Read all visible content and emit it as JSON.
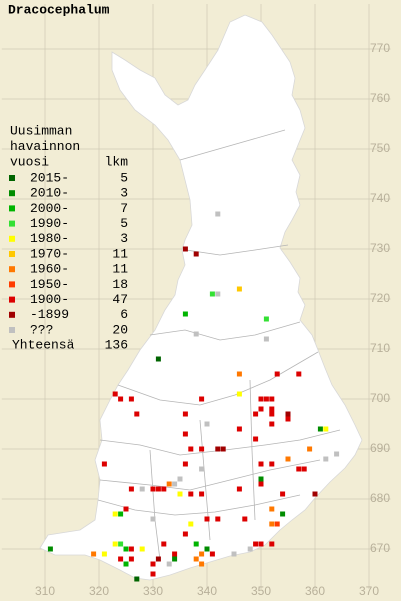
{
  "title": "Dracocephalum",
  "legend": {
    "header": [
      "Uusimman",
      "havainnon",
      "vuosi"
    ],
    "count_header": "lkm",
    "rows": [
      {
        "label": "2015-",
        "count": 5,
        "color": "#006400"
      },
      {
        "label": "2010-",
        "count": 3,
        "color": "#008c00"
      },
      {
        "label": "2000-",
        "count": 7,
        "color": "#00b400"
      },
      {
        "label": "1990-",
        "count": 5,
        "color": "#33e033"
      },
      {
        "label": "1980-",
        "count": 3,
        "color": "#ffff00"
      },
      {
        "label": "1970-",
        "count": 11,
        "color": "#ffc800"
      },
      {
        "label": "1960-",
        "count": 11,
        "color": "#ff7800"
      },
      {
        "label": "1950-",
        "count": 18,
        "color": "#ff3c00"
      },
      {
        "label": "1900-",
        "count": 47,
        "color": "#dc0000"
      },
      {
        "label": "-1899",
        "count": 6,
        "color": "#a00000"
      },
      {
        "label": "???",
        "count": 20,
        "color": "#c0c0c0"
      }
    ],
    "total_label": "Yhteensä",
    "total": 136
  },
  "xlim": [
    302,
    374
  ],
  "ylim": [
    662,
    779
  ],
  "xticks": [
    310,
    320,
    330,
    340,
    350,
    360,
    370
  ],
  "yticks": [
    670,
    680,
    690,
    700,
    710,
    720,
    730,
    740,
    750,
    760,
    770
  ],
  "observations": [
    [
      342,
      737,
      10
    ],
    [
      336,
      730,
      9
    ],
    [
      338,
      729,
      9
    ],
    [
      346,
      722,
      5
    ],
    [
      341,
      721,
      3
    ],
    [
      342,
      721,
      10
    ],
    [
      336,
      717,
      2
    ],
    [
      351,
      716,
      3
    ],
    [
      338,
      713,
      10
    ],
    [
      351,
      712,
      10
    ],
    [
      331,
      708,
      0
    ],
    [
      346,
      705,
      6
    ],
    [
      353,
      705,
      8
    ],
    [
      357,
      705,
      8
    ],
    [
      346,
      701,
      4
    ],
    [
      323,
      701,
      8
    ],
    [
      324,
      700,
      8
    ],
    [
      326,
      700,
      8
    ],
    [
      339,
      700,
      8
    ],
    [
      350,
      700,
      8
    ],
    [
      351,
      700,
      8
    ],
    [
      352,
      700,
      8
    ],
    [
      350,
      698,
      8
    ],
    [
      352,
      698,
      8
    ],
    [
      355,
      697,
      9
    ],
    [
      355,
      696,
      8
    ],
    [
      327,
      697,
      8
    ],
    [
      336,
      697,
      8
    ],
    [
      349,
      697,
      8
    ],
    [
      352,
      697,
      8
    ],
    [
      361,
      694,
      1
    ],
    [
      362,
      694,
      4
    ],
    [
      340,
      695,
      10
    ],
    [
      352,
      695,
      8
    ],
    [
      336,
      693,
      8
    ],
    [
      346,
      694,
      8
    ],
    [
      349,
      692,
      8
    ],
    [
      342,
      690,
      9
    ],
    [
      343,
      690,
      9
    ],
    [
      337,
      690,
      8
    ],
    [
      339,
      690,
      8
    ],
    [
      359,
      690,
      6
    ],
    [
      355,
      688,
      6
    ],
    [
      362,
      688,
      10
    ],
    [
      364,
      689,
      10
    ],
    [
      321,
      687,
      8
    ],
    [
      336,
      687,
      8
    ],
    [
      339,
      686,
      10
    ],
    [
      350,
      687,
      8
    ],
    [
      352,
      687,
      8
    ],
    [
      357,
      686,
      8
    ],
    [
      358,
      686,
      8
    ],
    [
      335,
      684,
      10
    ],
    [
      334,
      683,
      10
    ],
    [
      333,
      683,
      6
    ],
    [
      330,
      682,
      8
    ],
    [
      331,
      682,
      8
    ],
    [
      332,
      682,
      8
    ],
    [
      328,
      682,
      10
    ],
    [
      326,
      682,
      8
    ],
    [
      350,
      684,
      1
    ],
    [
      350,
      683,
      8
    ],
    [
      346,
      682,
      8
    ],
    [
      360,
      681,
      9
    ],
    [
      335,
      681,
      4
    ],
    [
      337,
      681,
      8
    ],
    [
      339,
      681,
      8
    ],
    [
      354,
      681,
      8
    ],
    [
      325,
      678,
      8
    ],
    [
      324,
      677,
      2
    ],
    [
      323,
      677,
      4
    ],
    [
      330,
      676,
      10
    ],
    [
      337,
      675,
      4
    ],
    [
      340,
      676,
      8
    ],
    [
      342,
      676,
      8
    ],
    [
      347,
      676,
      8
    ],
    [
      352,
      678,
      6
    ],
    [
      354,
      677,
      1
    ],
    [
      352,
      675,
      6
    ],
    [
      353,
      675,
      7
    ],
    [
      336,
      673,
      8
    ],
    [
      311,
      670,
      1
    ],
    [
      319,
      669,
      6
    ],
    [
      321,
      669,
      4
    ],
    [
      323,
      671,
      4
    ],
    [
      324,
      671,
      3
    ],
    [
      325,
      670,
      2
    ],
    [
      326,
      670,
      8
    ],
    [
      328,
      670,
      4
    ],
    [
      332,
      671,
      8
    ],
    [
      334,
      669,
      8
    ],
    [
      338,
      671,
      2
    ],
    [
      339,
      669,
      6
    ],
    [
      340,
      670,
      1
    ],
    [
      341,
      669,
      8
    ],
    [
      345,
      669,
      10
    ],
    [
      348,
      670,
      10
    ],
    [
      349,
      671,
      8
    ],
    [
      350,
      671,
      8
    ],
    [
      352,
      671,
      8
    ],
    [
      324,
      668,
      8
    ],
    [
      325,
      667,
      2
    ],
    [
      326,
      668,
      8
    ],
    [
      330,
      667,
      8
    ],
    [
      331,
      668,
      9
    ],
    [
      333,
      667,
      10
    ],
    [
      334,
      668,
      1
    ],
    [
      338,
      668,
      6
    ],
    [
      339,
      667,
      6
    ],
    [
      330,
      665,
      8
    ],
    [
      327,
      664,
      0
    ]
  ]
}
